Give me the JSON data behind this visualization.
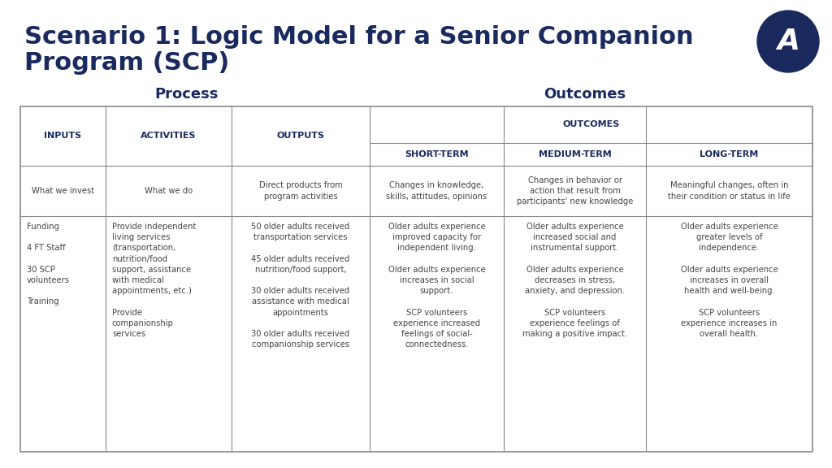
{
  "title_line1": "Scenario 1: Logic Model for a Senior Companion",
  "title_line2": "Program (SCP)",
  "title_color": "#1a2a5e",
  "title_fontsize": 22,
  "bg_color": "#ffffff",
  "section_label_process": "Process",
  "section_label_outcomes": "Outcomes",
  "section_label_color": "#1a2a5e",
  "header_row1_labels": [
    "INPUTS",
    "ACTIVITIES",
    "OUTPUTS",
    "OUTCOMES"
  ],
  "header_row2_labels": [
    "SHORT-TERM",
    "MEDIUM-TERM",
    "LONG-TERM"
  ],
  "subheader_row": [
    "What we invest",
    "What we do",
    "Direct products from\nprogram activities",
    "Changes in knowledge,\nskills, attitudes, opinions",
    "Changes in behavior or\naction that result from\nparticipants' new knowledge",
    "Meaningful changes, often in\ntheir condition or status in life"
  ],
  "content_row": [
    "Funding\n\n4 FT Staff\n\n30 SCP\nvolunteers\n\nTraining",
    "Provide independent\nliving services\n(transportation,\nnutrition/food\nsupport, assistance\nwith medical\nappointments, etc.)\n\nProvide\ncompanionship\nservices",
    "50 older adults received\ntransportation services\n\n45 older adults received\nnutrition/food support,\n\n30 older adults received\nassistance with medical\nappointments\n\n30 older adults received\ncompanionship services",
    "Older adults experience\nimproved capacity for\nindependent living.\n\nOlder adults experience\nincreases in social\nsupport.\n\nSCP volunteers\nexperience increased\nfeelings of social-\nconnectedness.",
    "Older adults experience\nincreased social and\ninstrumental support.\n\nOlder adults experience\ndecreases in stress,\nanxiety, and depression.\n\nSCP volunteers\nexperience feelings of\nmaking a positive impact.",
    "Older adults experience\ngreater levels of\nindependence.\n\nOlder adults experience\nincreases in overall\nhealth and well-being.\n\nSCP volunteers\nexperience increases in\noverall health."
  ],
  "line_color": "#888888",
  "header_text_color": "#1a2a5e",
  "cell_text_color": "#555555",
  "logo_color": "#1a2a5e"
}
